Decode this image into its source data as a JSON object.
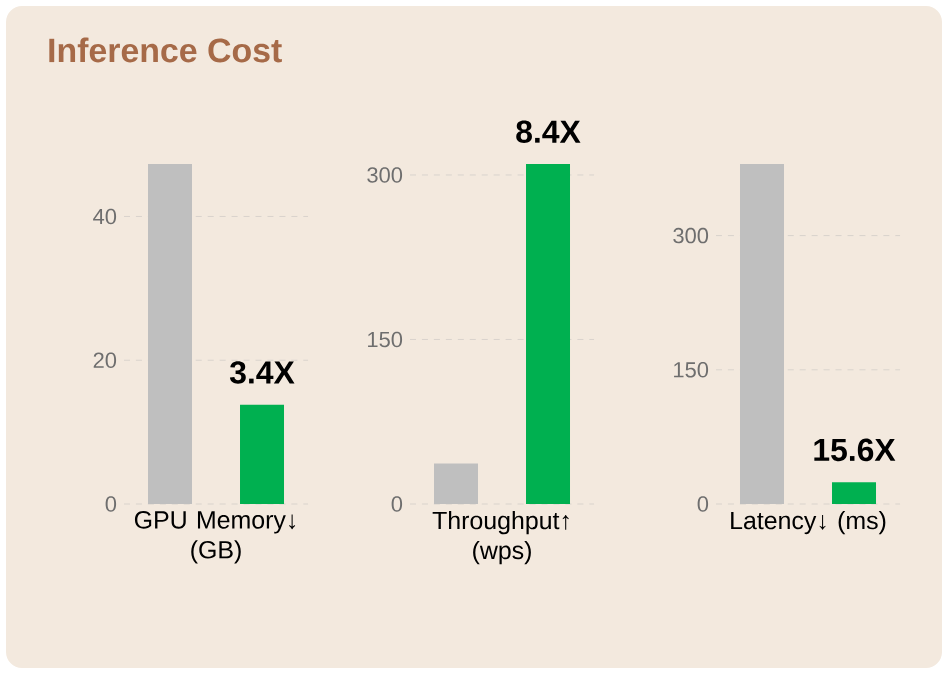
{
  "chart_data": [
    {
      "type": "bar",
      "title": "Inference Cost",
      "categories": [
        null,
        null
      ],
      "values": [
        47.3,
        13.8
      ],
      "colors": [
        "#bfbfbf",
        "#00b050"
      ],
      "ylim": [
        0,
        47.3
      ],
      "yticks": [
        0,
        20,
        40
      ],
      "grid": "y",
      "xlabel": "GPU Memory↓ (GB)",
      "annotations": [
        "3.4X"
      ]
    },
    {
      "type": "bar",
      "categories": [
        null,
        null
      ],
      "values": [
        37,
        310
      ],
      "colors": [
        "#bfbfbf",
        "#00b050"
      ],
      "ylim": [
        0,
        310
      ],
      "yticks": [
        0,
        150,
        300
      ],
      "grid": "y",
      "xlabel": "Throughput↑ (wps)",
      "annotations": [
        "8.4X"
      ]
    },
    {
      "type": "bar",
      "categories": [
        null,
        null
      ],
      "values": [
        380,
        24.4
      ],
      "colors": [
        "#bfbfbf",
        "#00b050"
      ],
      "ylim": [
        0,
        380
      ],
      "yticks": [
        0,
        150,
        300
      ],
      "grid": "y",
      "xlabel": "Latency↓ (ms)",
      "annotations": [
        "15.6X"
      ]
    }
  ]
}
